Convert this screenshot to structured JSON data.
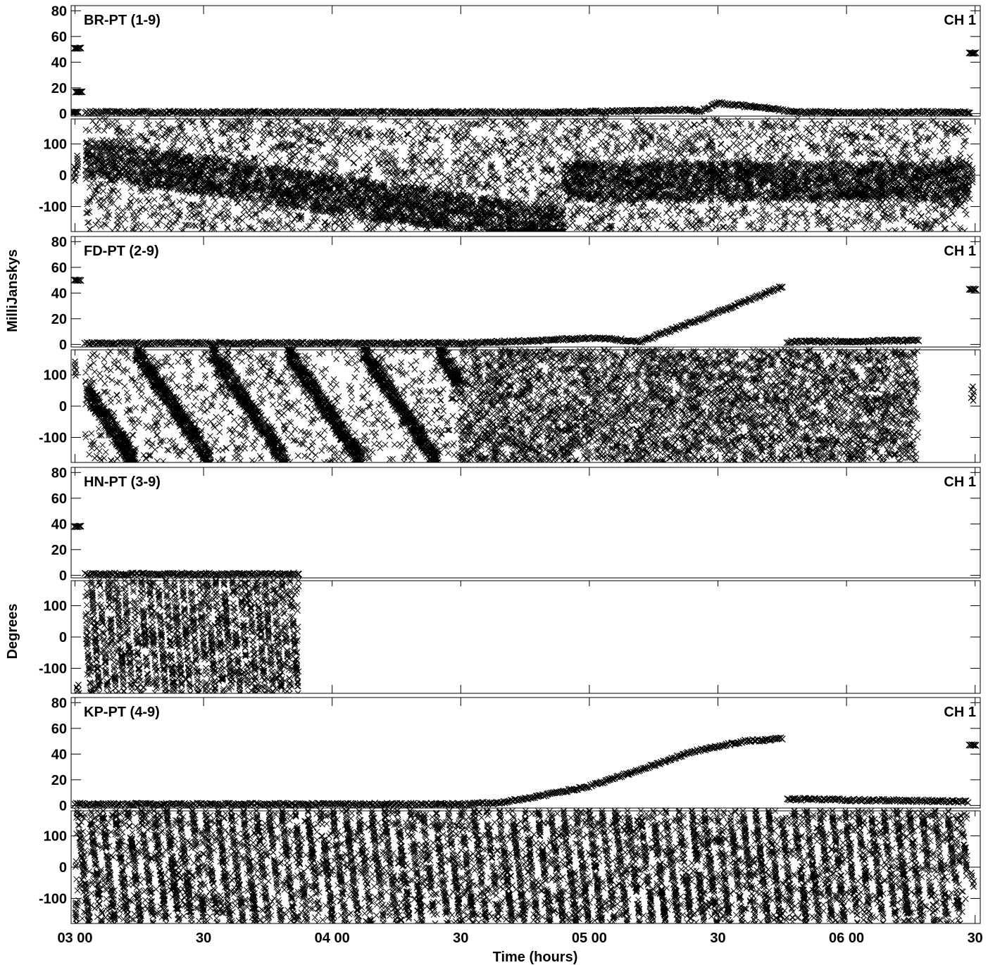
{
  "chart_data": {
    "type": "scatter",
    "x_label": "Time (hours)",
    "y_label_amplitude": "MilliJanskys",
    "y_label_phase": "Degrees",
    "x_range_hours": [
      2.985,
      6.52
    ],
    "x_ticks": [
      {
        "value": 3.0,
        "label": "03 00"
      },
      {
        "value": 3.5,
        "label": "30"
      },
      {
        "value": 4.0,
        "label": "04 00"
      },
      {
        "value": 4.5,
        "label": "30"
      },
      {
        "value": 5.0,
        "label": "05 00"
      },
      {
        "value": 5.5,
        "label": "30"
      },
      {
        "value": 6.0,
        "label": "06 00"
      },
      {
        "value": 6.5,
        "label": "30"
      }
    ],
    "amplitude_axis": {
      "range": [
        -2,
        84
      ],
      "ticks": [
        0,
        20,
        40,
        60,
        80
      ]
    },
    "phase_axis": {
      "range": [
        -180,
        180
      ],
      "ticks": [
        -100,
        0,
        100
      ]
    },
    "marker": "x",
    "marker_color": "#000000",
    "panels": [
      {
        "baseline": "BR-PT (1-9)",
        "channel": "CH 1",
        "amplitude": {
          "calibrator_points": [
            [
              3.01,
              51
            ],
            [
              3.015,
              17
            ],
            [
              3.0,
              1
            ],
            [
              6.49,
              47
            ]
          ],
          "segments": [
            {
              "x": [
                3.04,
                4.0,
                4.8,
                4.9,
                5.2,
                5.4,
                5.42,
                5.5,
                5.7,
                5.8,
                6.48
              ],
              "y": [
                1,
                1,
                1,
                1,
                2,
                3,
                1,
                8,
                4,
                1,
                1
              ]
            }
          ]
        },
        "phase": {
          "data_extent": [
            3.04,
            6.48
          ],
          "calibrator_points": [
            [
              3.0,
              5
            ],
            [
              3.01,
              40
            ],
            [
              6.49,
              0
            ]
          ],
          "pattern": "dense scatter with slowly drifting bands"
        }
      },
      {
        "baseline": "FD-PT (2-9)",
        "channel": "CH 1",
        "amplitude": {
          "calibrator_points": [
            [
              3.01,
              50
            ],
            [
              6.49,
              43
            ]
          ],
          "segments": [
            {
              "x": [
                3.04,
                4.5,
                4.8,
                5.0,
                5.1,
                5.2,
                5.5,
                5.75
              ],
              "y": [
                1,
                1,
                3,
                5,
                4,
                2,
                25,
                45
              ]
            },
            {
              "x": [
                5.77,
                6.28
              ],
              "y": [
                2,
                3
              ]
            }
          ]
        },
        "phase": {
          "data_extent": [
            3.04,
            6.28
          ],
          "calibrator_points": [
            [
              3.0,
              120
            ],
            [
              6.49,
              40
            ]
          ],
          "pattern": "diagonal phase-wrap stripes, dense scatter after 04 30"
        }
      },
      {
        "baseline": "HN-PT (3-9)",
        "channel": "CH 1",
        "amplitude": {
          "calibrator_points": [
            [
              3.01,
              38
            ]
          ],
          "segments": [
            {
              "x": [
                3.04,
                3.87
              ],
              "y": [
                1,
                1
              ]
            }
          ]
        },
        "phase": {
          "data_extent": [
            3.04,
            3.87
          ],
          "calibrator_points": [
            [
              3.01,
              -175
            ]
          ],
          "pattern": "rapid phase-wrap stripes"
        }
      },
      {
        "baseline": "KP-PT (4-9)",
        "channel": "CH 1",
        "amplitude": {
          "calibrator_points": [
            [
              6.49,
              47
            ]
          ],
          "segments": [
            {
              "x": [
                3.0,
                4.5,
                4.65,
                4.8,
                5.0,
                5.2,
                5.4,
                5.6,
                5.75
              ],
              "y": [
                1,
                1,
                2,
                7,
                15,
                28,
                42,
                50,
                52
              ]
            },
            {
              "x": [
                5.77,
                6.47
              ],
              "y": [
                5,
                3
              ]
            }
          ]
        },
        "phase": {
          "data_extent": [
            3.0,
            6.47
          ],
          "calibrator_points": [
            [
              6.49,
              -40
            ]
          ],
          "pattern": "fast vertical phase-wrap stripes, dense scatter after 04 30"
        }
      }
    ]
  }
}
